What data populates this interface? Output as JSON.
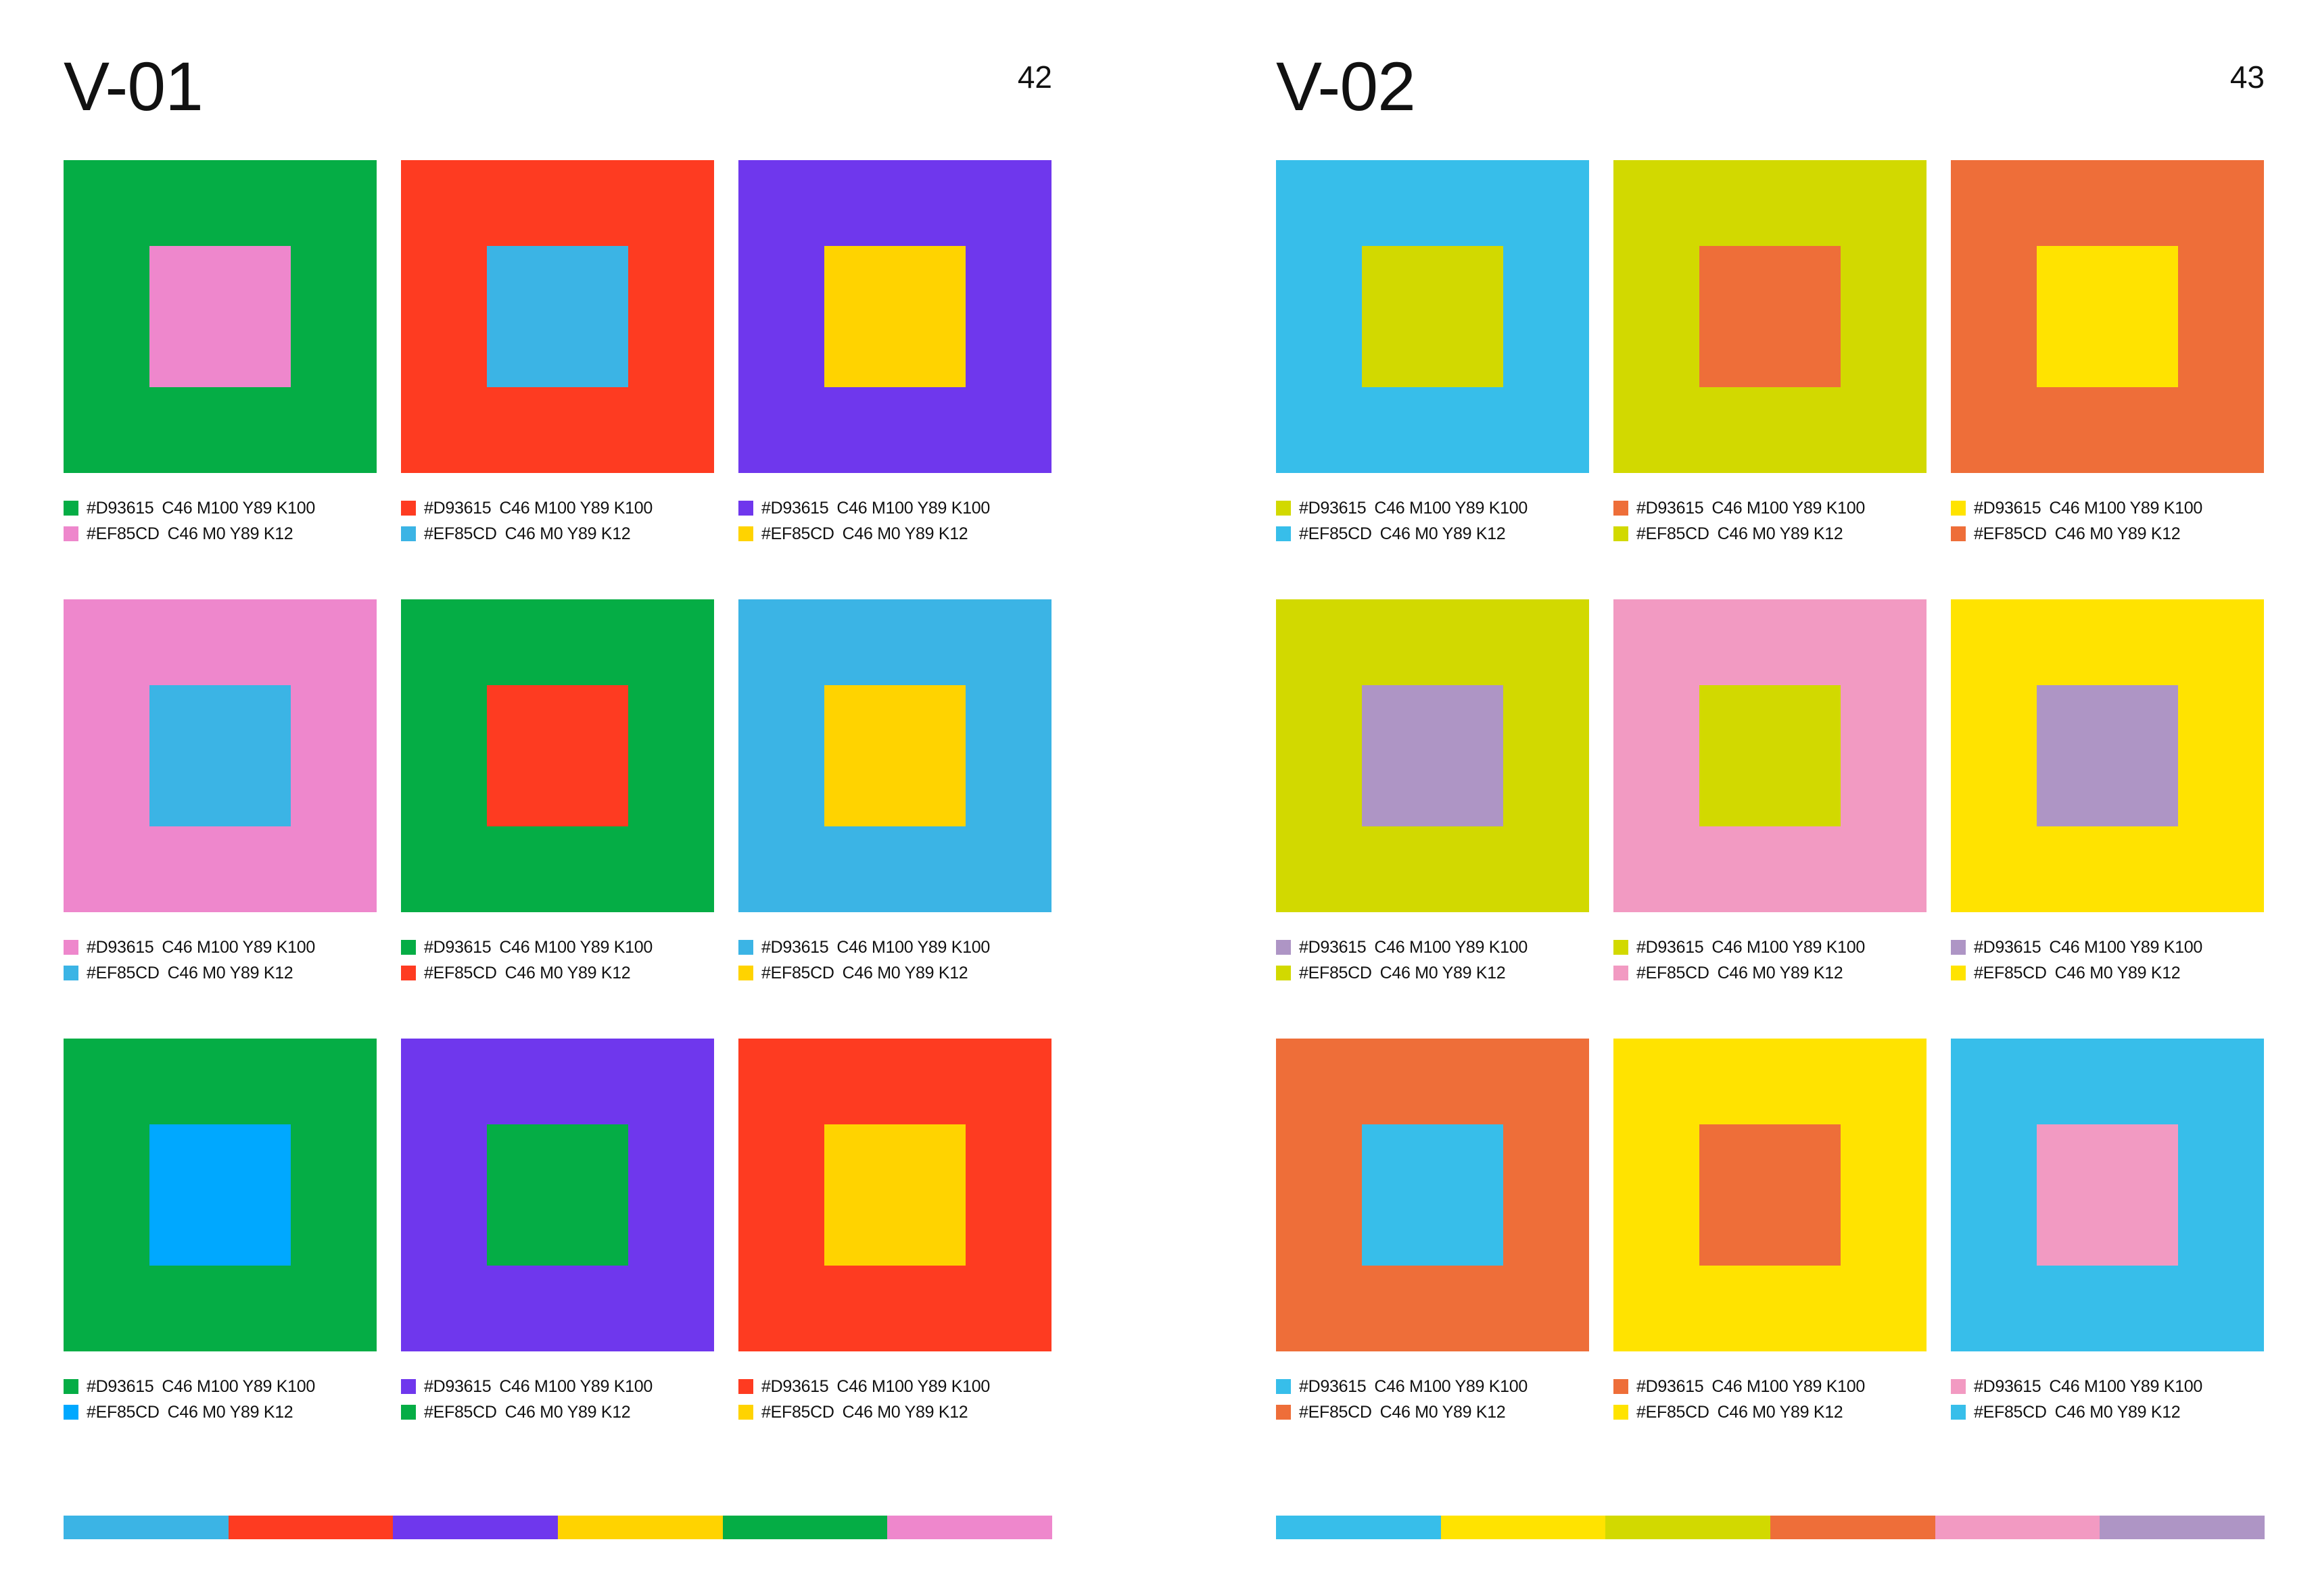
{
  "colors": {
    "green": "#05AD45",
    "red": "#FE3B21",
    "purple": "#6F37ED",
    "pink": "#EE87CC",
    "sky": "#3BB4E5",
    "yellow": "#FFD300",
    "azure": "#00A8FF",
    "cyan": "#37BEEA",
    "lime": "#D2D900",
    "orange": "#EE6E39",
    "lemon": "#FFE300",
    "lilac": "#AE95C5",
    "rose": "#F29AC2"
  },
  "pages": [
    {
      "title": "V-01",
      "page_number": "42",
      "swatches": [
        {
          "outer_color": "#05AD45",
          "inner_color": "#EE87CC",
          "line1": {
            "hex": "#D93615",
            "cmyk": "C46 M100 Y89 K100"
          },
          "line2": {
            "hex": "#EF85CD",
            "cmyk": "C46 M0 Y89 K12"
          }
        },
        {
          "outer_color": "#FE3B21",
          "inner_color": "#3BB4E5",
          "line1": {
            "hex": "#D93615",
            "cmyk": "C46 M100 Y89 K100"
          },
          "line2": {
            "hex": "#EF85CD",
            "cmyk": "C46 M0 Y89 K12"
          }
        },
        {
          "outer_color": "#6F37ED",
          "inner_color": "#FFD300",
          "line1": {
            "hex": "#D93615",
            "cmyk": "C46 M100 Y89 K100"
          },
          "line2": {
            "hex": "#EF85CD",
            "cmyk": "C46 M0 Y89 K12"
          }
        },
        {
          "outer_color": "#EE87CC",
          "inner_color": "#3BB4E5",
          "line1": {
            "hex": "#D93615",
            "cmyk": "C46 M100 Y89 K100"
          },
          "line2": {
            "hex": "#EF85CD",
            "cmyk": "C46 M0 Y89 K12"
          }
        },
        {
          "outer_color": "#05AD45",
          "inner_color": "#FE3B21",
          "line1": {
            "hex": "#D93615",
            "cmyk": "C46 M100 Y89 K100"
          },
          "line2": {
            "hex": "#EF85CD",
            "cmyk": "C46 M0 Y89 K12"
          }
        },
        {
          "outer_color": "#3BB4E5",
          "inner_color": "#FFD300",
          "line1": {
            "hex": "#D93615",
            "cmyk": "C46 M100 Y89 K100"
          },
          "line2": {
            "hex": "#EF85CD",
            "cmyk": "C46 M0 Y89 K12"
          }
        },
        {
          "outer_color": "#05AD45",
          "inner_color": "#00A8FF",
          "line1": {
            "hex": "#D93615",
            "cmyk": "C46 M100 Y89 K100"
          },
          "line2": {
            "hex": "#EF85CD",
            "cmyk": "C46 M0 Y89 K12"
          }
        },
        {
          "outer_color": "#6F37ED",
          "inner_color": "#05AD45",
          "line1": {
            "hex": "#D93615",
            "cmyk": "C46 M100 Y89 K100"
          },
          "line2": {
            "hex": "#EF85CD",
            "cmyk": "C46 M0 Y89 K12"
          }
        },
        {
          "outer_color": "#FE3B21",
          "inner_color": "#FFD300",
          "line1": {
            "hex": "#D93615",
            "cmyk": "C46 M100 Y89 K100"
          },
          "line2": {
            "hex": "#EF85CD",
            "cmyk": "C46 M0 Y89 K12"
          }
        }
      ],
      "palette_bar": [
        "#3BB4E5",
        "#FE3B21",
        "#6F37ED",
        "#FFD300",
        "#05AD45",
        "#EE87CC"
      ]
    },
    {
      "title": "V-02",
      "page_number": "43",
      "swatches": [
        {
          "outer_color": "#37BEEA",
          "inner_color": "#D2D900",
          "line1": {
            "hex": "#D93615",
            "cmyk": "C46 M100 Y89 K100"
          },
          "line2": {
            "hex": "#EF85CD",
            "cmyk": "C46 M0 Y89 K12"
          }
        },
        {
          "outer_color": "#D2D900",
          "inner_color": "#EE6E39",
          "line1": {
            "hex": "#D93615",
            "cmyk": "C46 M100 Y89 K100"
          },
          "line2": {
            "hex": "#EF85CD",
            "cmyk": "C46 M0 Y89 K12"
          }
        },
        {
          "outer_color": "#EE6E39",
          "inner_color": "#FFE300",
          "line1": {
            "hex": "#D93615",
            "cmyk": "C46 M100 Y89 K100"
          },
          "line2": {
            "hex": "#EF85CD",
            "cmyk": "C46 M0 Y89 K12"
          }
        },
        {
          "outer_color": "#D2D900",
          "inner_color": "#AE95C5",
          "line1": {
            "hex": "#D93615",
            "cmyk": "C46 M100 Y89 K100"
          },
          "line2": {
            "hex": "#EF85CD",
            "cmyk": "C46 M0 Y89 K12"
          }
        },
        {
          "outer_color": "#F29AC2",
          "inner_color": "#D2D900",
          "line1": {
            "hex": "#D93615",
            "cmyk": "C46 M100 Y89 K100"
          },
          "line2": {
            "hex": "#EF85CD",
            "cmyk": "C46 M0 Y89 K12"
          }
        },
        {
          "outer_color": "#FFE300",
          "inner_color": "#AE95C5",
          "line1": {
            "hex": "#D93615",
            "cmyk": "C46 M100 Y89 K100"
          },
          "line2": {
            "hex": "#EF85CD",
            "cmyk": "C46 M0 Y89 K12"
          }
        },
        {
          "outer_color": "#EE6E39",
          "inner_color": "#37BEEA",
          "line1": {
            "hex": "#D93615",
            "cmyk": "C46 M100 Y89 K100"
          },
          "line2": {
            "hex": "#EF85CD",
            "cmyk": "C46 M0 Y89 K12"
          }
        },
        {
          "outer_color": "#FFE300",
          "inner_color": "#EE6E39",
          "line1": {
            "hex": "#D93615",
            "cmyk": "C46 M100 Y89 K100"
          },
          "line2": {
            "hex": "#EF85CD",
            "cmyk": "C46 M0 Y89 K12"
          }
        },
        {
          "outer_color": "#37BEEA",
          "inner_color": "#F29AC2",
          "line1": {
            "hex": "#D93615",
            "cmyk": "C46 M100 Y89 K100"
          },
          "line2": {
            "hex": "#EF85CD",
            "cmyk": "C46 M0 Y89 K12"
          }
        }
      ],
      "palette_bar": [
        "#37BEEA",
        "#FFE300",
        "#D2D900",
        "#EE6E39",
        "#F29AC2",
        "#AE95C5"
      ]
    }
  ]
}
